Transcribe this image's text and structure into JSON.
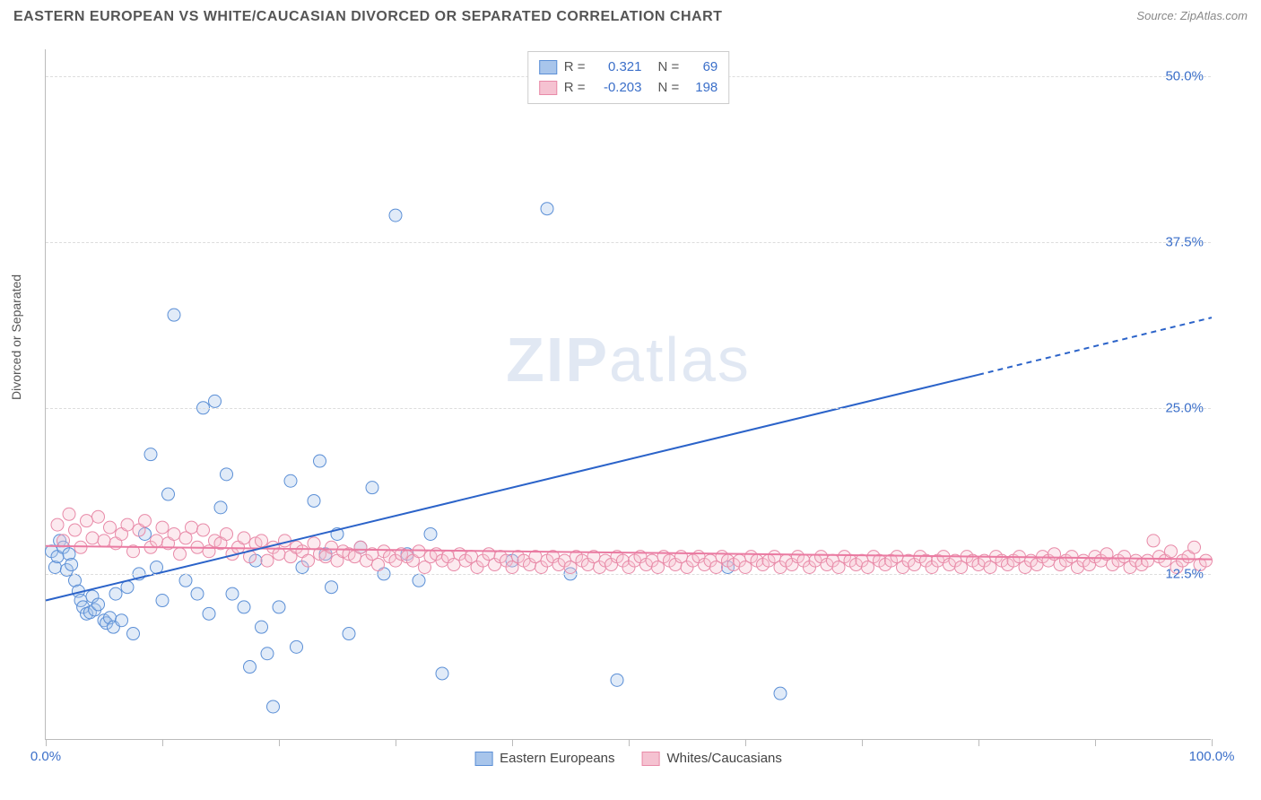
{
  "header": {
    "title": "EASTERN EUROPEAN VS WHITE/CAUCASIAN DIVORCED OR SEPARATED CORRELATION CHART",
    "source_prefix": "Source:",
    "source_name": "ZipAtlas.com"
  },
  "watermark": {
    "part1": "ZIP",
    "part2": "atlas"
  },
  "chart": {
    "type": "scatter",
    "y_axis_title": "Divorced or Separated",
    "xlim": [
      0,
      100
    ],
    "ylim": [
      0,
      52
    ],
    "x_ticks": [
      0,
      10,
      20,
      30,
      40,
      50,
      60,
      70,
      80,
      90,
      100
    ],
    "x_tick_labels": {
      "0": "0.0%",
      "100": "100.0%"
    },
    "y_ticks": [
      12.5,
      25.0,
      37.5,
      50.0
    ],
    "y_tick_labels": [
      "12.5%",
      "25.0%",
      "37.5%",
      "50.0%"
    ],
    "grid_color": "#dddddd",
    "axis_color": "#bbbbbb",
    "background_color": "#ffffff",
    "tick_label_color": "#3b6fc9",
    "tick_label_fontsize": 15,
    "marker_radius": 7,
    "marker_fill_opacity": 0.35,
    "marker_stroke_width": 1,
    "series": [
      {
        "key": "eastern",
        "label": "Eastern Europeans",
        "color_fill": "#a8c5eb",
        "color_stroke": "#5b8fd6",
        "r_label": "R =",
        "r_value": "0.321",
        "n_label": "N =",
        "n_value": "69",
        "trend": {
          "x1": 0,
          "y1": 10.5,
          "x2": 80,
          "y2": 27.5,
          "solid_until_x": 80,
          "dash_to_x": 100,
          "dash_to_y": 31.8,
          "color": "#2b63c9",
          "width": 2
        },
        "points": [
          [
            0.5,
            14.2
          ],
          [
            0.8,
            13.0
          ],
          [
            1.0,
            13.8
          ],
          [
            1.2,
            15.0
          ],
          [
            1.5,
            14.5
          ],
          [
            1.8,
            12.8
          ],
          [
            2.0,
            14.0
          ],
          [
            2.2,
            13.2
          ],
          [
            2.5,
            12.0
          ],
          [
            2.8,
            11.2
          ],
          [
            3.0,
            10.5
          ],
          [
            3.2,
            10.0
          ],
          [
            3.5,
            9.5
          ],
          [
            3.8,
            9.6
          ],
          [
            4.0,
            10.8
          ],
          [
            4.2,
            9.8
          ],
          [
            4.5,
            10.2
          ],
          [
            5.0,
            9.0
          ],
          [
            5.2,
            8.8
          ],
          [
            5.5,
            9.2
          ],
          [
            5.8,
            8.5
          ],
          [
            6.0,
            11.0
          ],
          [
            6.5,
            9.0
          ],
          [
            7.0,
            11.5
          ],
          [
            7.5,
            8.0
          ],
          [
            8.0,
            12.5
          ],
          [
            8.5,
            15.5
          ],
          [
            9.0,
            21.5
          ],
          [
            9.5,
            13.0
          ],
          [
            10.0,
            10.5
          ],
          [
            10.5,
            18.5
          ],
          [
            11.0,
            32.0
          ],
          [
            12.0,
            12.0
          ],
          [
            13.0,
            11.0
          ],
          [
            13.5,
            25.0
          ],
          [
            14.0,
            9.5
          ],
          [
            14.5,
            25.5
          ],
          [
            15.0,
            17.5
          ],
          [
            15.5,
            20.0
          ],
          [
            16.0,
            11.0
          ],
          [
            17.0,
            10.0
          ],
          [
            17.5,
            5.5
          ],
          [
            18.0,
            13.5
          ],
          [
            18.5,
            8.5
          ],
          [
            19.0,
            6.5
          ],
          [
            19.5,
            2.5
          ],
          [
            20.0,
            10.0
          ],
          [
            21.0,
            19.5
          ],
          [
            21.5,
            7.0
          ],
          [
            22.0,
            13.0
          ],
          [
            23.0,
            18.0
          ],
          [
            23.5,
            21.0
          ],
          [
            24.0,
            14.0
          ],
          [
            24.5,
            11.5
          ],
          [
            25.0,
            15.5
          ],
          [
            26.0,
            8.0
          ],
          [
            27.0,
            14.5
          ],
          [
            28.0,
            19.0
          ],
          [
            29.0,
            12.5
          ],
          [
            30.0,
            39.5
          ],
          [
            31.0,
            14.0
          ],
          [
            32.0,
            12.0
          ],
          [
            33.0,
            15.5
          ],
          [
            34.0,
            5.0
          ],
          [
            40.0,
            13.5
          ],
          [
            43.0,
            40.0
          ],
          [
            45.0,
            12.5
          ],
          [
            49.0,
            4.5
          ],
          [
            58.5,
            13.0
          ],
          [
            63.0,
            3.5
          ]
        ]
      },
      {
        "key": "white",
        "label": "Whites/Caucasians",
        "color_fill": "#f5c2d1",
        "color_stroke": "#e88aa8",
        "r_label": "R =",
        "r_value": "-0.203",
        "n_label": "N =",
        "n_value": "198",
        "trend": {
          "x1": 0,
          "y1": 14.6,
          "x2": 100,
          "y2": 13.6,
          "solid_until_x": 100,
          "dash_to_x": 100,
          "dash_to_y": 13.6,
          "color": "#ea7ba2",
          "width": 2
        },
        "points": [
          [
            1.0,
            16.2
          ],
          [
            1.5,
            15.0
          ],
          [
            2.0,
            17.0
          ],
          [
            2.5,
            15.8
          ],
          [
            3.0,
            14.5
          ],
          [
            3.5,
            16.5
          ],
          [
            4.0,
            15.2
          ],
          [
            4.5,
            16.8
          ],
          [
            5.0,
            15.0
          ],
          [
            5.5,
            16.0
          ],
          [
            6.0,
            14.8
          ],
          [
            6.5,
            15.5
          ],
          [
            7.0,
            16.2
          ],
          [
            7.5,
            14.2
          ],
          [
            8.0,
            15.8
          ],
          [
            8.5,
            16.5
          ],
          [
            9.0,
            14.5
          ],
          [
            9.5,
            15.0
          ],
          [
            10.0,
            16.0
          ],
          [
            10.5,
            14.8
          ],
          [
            11.0,
            15.5
          ],
          [
            11.5,
            14.0
          ],
          [
            12.0,
            15.2
          ],
          [
            12.5,
            16.0
          ],
          [
            13.0,
            14.5
          ],
          [
            13.5,
            15.8
          ],
          [
            14.0,
            14.2
          ],
          [
            14.5,
            15.0
          ],
          [
            15.0,
            14.8
          ],
          [
            15.5,
            15.5
          ],
          [
            16.0,
            14.0
          ],
          [
            16.5,
            14.5
          ],
          [
            17.0,
            15.2
          ],
          [
            17.5,
            13.8
          ],
          [
            18.0,
            14.8
          ],
          [
            18.5,
            15.0
          ],
          [
            19.0,
            13.5
          ],
          [
            19.5,
            14.5
          ],
          [
            20.0,
            14.0
          ],
          [
            20.5,
            15.0
          ],
          [
            21.0,
            13.8
          ],
          [
            21.5,
            14.5
          ],
          [
            22.0,
            14.2
          ],
          [
            22.5,
            13.5
          ],
          [
            23.0,
            14.8
          ],
          [
            23.5,
            14.0
          ],
          [
            24.0,
            13.8
          ],
          [
            24.5,
            14.5
          ],
          [
            25.0,
            13.5
          ],
          [
            25.5,
            14.2
          ],
          [
            26.0,
            14.0
          ],
          [
            26.5,
            13.8
          ],
          [
            27.0,
            14.5
          ],
          [
            27.5,
            13.5
          ],
          [
            28.0,
            14.0
          ],
          [
            28.5,
            13.2
          ],
          [
            29.0,
            14.2
          ],
          [
            29.5,
            13.8
          ],
          [
            30.0,
            13.5
          ],
          [
            30.5,
            14.0
          ],
          [
            31.0,
            13.8
          ],
          [
            31.5,
            13.5
          ],
          [
            32.0,
            14.2
          ],
          [
            32.5,
            13.0
          ],
          [
            33.0,
            13.8
          ],
          [
            33.5,
            14.0
          ],
          [
            34.0,
            13.5
          ],
          [
            34.5,
            13.8
          ],
          [
            35.0,
            13.2
          ],
          [
            35.5,
            14.0
          ],
          [
            36.0,
            13.5
          ],
          [
            36.5,
            13.8
          ],
          [
            37.0,
            13.0
          ],
          [
            37.5,
            13.5
          ],
          [
            38.0,
            14.0
          ],
          [
            38.5,
            13.2
          ],
          [
            39.0,
            13.8
          ],
          [
            39.5,
            13.5
          ],
          [
            40.0,
            13.0
          ],
          [
            40.5,
            13.8
          ],
          [
            41.0,
            13.5
          ],
          [
            41.5,
            13.2
          ],
          [
            42.0,
            13.8
          ],
          [
            42.5,
            13.0
          ],
          [
            43.0,
            13.5
          ],
          [
            43.5,
            13.8
          ],
          [
            44.0,
            13.2
          ],
          [
            44.5,
            13.5
          ],
          [
            45.0,
            13.0
          ],
          [
            45.5,
            13.8
          ],
          [
            46.0,
            13.5
          ],
          [
            46.5,
            13.2
          ],
          [
            47.0,
            13.8
          ],
          [
            47.5,
            13.0
          ],
          [
            48.0,
            13.5
          ],
          [
            48.5,
            13.2
          ],
          [
            49.0,
            13.8
          ],
          [
            49.5,
            13.5
          ],
          [
            50.0,
            13.0
          ],
          [
            50.5,
            13.5
          ],
          [
            51.0,
            13.8
          ],
          [
            51.5,
            13.2
          ],
          [
            52.0,
            13.5
          ],
          [
            52.5,
            13.0
          ],
          [
            53.0,
            13.8
          ],
          [
            53.5,
            13.5
          ],
          [
            54.0,
            13.2
          ],
          [
            54.5,
            13.8
          ],
          [
            55.0,
            13.0
          ],
          [
            55.5,
            13.5
          ],
          [
            56.0,
            13.8
          ],
          [
            56.5,
            13.2
          ],
          [
            57.0,
            13.5
          ],
          [
            57.5,
            13.0
          ],
          [
            58.0,
            13.8
          ],
          [
            58.5,
            13.5
          ],
          [
            59.0,
            13.2
          ],
          [
            59.5,
            13.5
          ],
          [
            60.0,
            13.0
          ],
          [
            60.5,
            13.8
          ],
          [
            61.0,
            13.5
          ],
          [
            61.5,
            13.2
          ],
          [
            62.0,
            13.5
          ],
          [
            62.5,
            13.8
          ],
          [
            63.0,
            13.0
          ],
          [
            63.5,
            13.5
          ],
          [
            64.0,
            13.2
          ],
          [
            64.5,
            13.8
          ],
          [
            65.0,
            13.5
          ],
          [
            65.5,
            13.0
          ],
          [
            66.0,
            13.5
          ],
          [
            66.5,
            13.8
          ],
          [
            67.0,
            13.2
          ],
          [
            67.5,
            13.5
          ],
          [
            68.0,
            13.0
          ],
          [
            68.5,
            13.8
          ],
          [
            69.0,
            13.5
          ],
          [
            69.5,
            13.2
          ],
          [
            70.0,
            13.5
          ],
          [
            70.5,
            13.0
          ],
          [
            71.0,
            13.8
          ],
          [
            71.5,
            13.5
          ],
          [
            72.0,
            13.2
          ],
          [
            72.5,
            13.5
          ],
          [
            73.0,
            13.8
          ],
          [
            73.5,
            13.0
          ],
          [
            74.0,
            13.5
          ],
          [
            74.5,
            13.2
          ],
          [
            75.0,
            13.8
          ],
          [
            75.5,
            13.5
          ],
          [
            76.0,
            13.0
          ],
          [
            76.5,
            13.5
          ],
          [
            77.0,
            13.8
          ],
          [
            77.5,
            13.2
          ],
          [
            78.0,
            13.5
          ],
          [
            78.5,
            13.0
          ],
          [
            79.0,
            13.8
          ],
          [
            79.5,
            13.5
          ],
          [
            80.0,
            13.2
          ],
          [
            80.5,
            13.5
          ],
          [
            81.0,
            13.0
          ],
          [
            81.5,
            13.8
          ],
          [
            82.0,
            13.5
          ],
          [
            82.5,
            13.2
          ],
          [
            83.0,
            13.5
          ],
          [
            83.5,
            13.8
          ],
          [
            84.0,
            13.0
          ],
          [
            84.5,
            13.5
          ],
          [
            85.0,
            13.2
          ],
          [
            85.5,
            13.8
          ],
          [
            86.0,
            13.5
          ],
          [
            86.5,
            14.0
          ],
          [
            87.0,
            13.2
          ],
          [
            87.5,
            13.5
          ],
          [
            88.0,
            13.8
          ],
          [
            88.5,
            13.0
          ],
          [
            89.0,
            13.5
          ],
          [
            89.5,
            13.2
          ],
          [
            90.0,
            13.8
          ],
          [
            90.5,
            13.5
          ],
          [
            91.0,
            14.0
          ],
          [
            91.5,
            13.2
          ],
          [
            92.0,
            13.5
          ],
          [
            92.5,
            13.8
          ],
          [
            93.0,
            13.0
          ],
          [
            93.5,
            13.5
          ],
          [
            94.0,
            13.2
          ],
          [
            94.5,
            13.5
          ],
          [
            95.0,
            15.0
          ],
          [
            95.5,
            13.8
          ],
          [
            96.0,
            13.5
          ],
          [
            96.5,
            14.2
          ],
          [
            97.0,
            13.0
          ],
          [
            97.5,
            13.5
          ],
          [
            98.0,
            13.8
          ],
          [
            98.5,
            14.5
          ],
          [
            99.0,
            13.2
          ],
          [
            99.5,
            13.5
          ]
        ]
      }
    ]
  }
}
